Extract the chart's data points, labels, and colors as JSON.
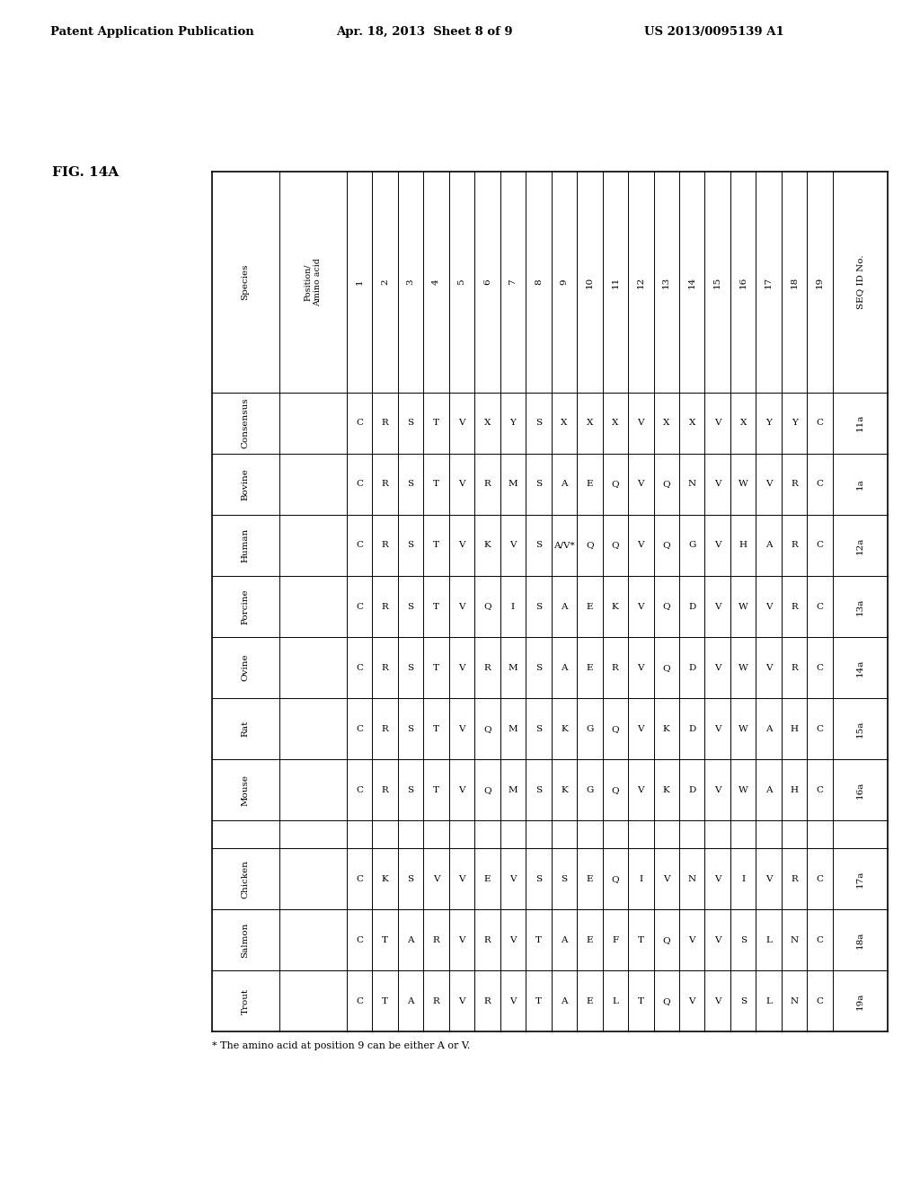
{
  "fig_label": "FIG. 14A",
  "footnote": "* The amino acid at position 9 can be either A or V.",
  "positions": [
    "1",
    "2",
    "3",
    "4",
    "5",
    "6",
    "7",
    "8",
    "9",
    "10",
    "11",
    "12",
    "13",
    "14",
    "15",
    "16",
    "17",
    "18",
    "19"
  ],
  "rows": [
    [
      "Consensus",
      "C",
      "R",
      "S",
      "T",
      "V",
      "X",
      "Y",
      "S",
      "X",
      "X",
      "X",
      "V",
      "X",
      "X",
      "V",
      "X",
      "Y",
      "Y",
      "C",
      "11a"
    ],
    [
      "Bovine",
      "C",
      "R",
      "S",
      "T",
      "V",
      "R",
      "M",
      "S",
      "A",
      "E",
      "Q",
      "V",
      "Q",
      "N",
      "V",
      "W",
      "V",
      "R",
      "C",
      "1a"
    ],
    [
      "Human",
      "C",
      "R",
      "S",
      "T",
      "V",
      "K",
      "V",
      "S",
      "A/V*",
      "Q",
      "Q",
      "V",
      "Q",
      "G",
      "V",
      "H",
      "A",
      "R",
      "C",
      "12a"
    ],
    [
      "Porcine",
      "C",
      "R",
      "S",
      "T",
      "V",
      "Q",
      "I",
      "S",
      "A",
      "E",
      "K",
      "V",
      "Q",
      "D",
      "V",
      "W",
      "V",
      "R",
      "C",
      "13a"
    ],
    [
      "Ovine",
      "C",
      "R",
      "S",
      "T",
      "V",
      "R",
      "M",
      "S",
      "A",
      "E",
      "R",
      "V",
      "Q",
      "D",
      "V",
      "W",
      "V",
      "R",
      "C",
      "14a"
    ],
    [
      "Rat",
      "C",
      "R",
      "S",
      "T",
      "V",
      "Q",
      "M",
      "S",
      "K",
      "G",
      "Q",
      "V",
      "K",
      "D",
      "V",
      "W",
      "A",
      "H",
      "C",
      "15a"
    ],
    [
      "Mouse",
      "C",
      "R",
      "S",
      "T",
      "V",
      "Q",
      "M",
      "S",
      "K",
      "G",
      "Q",
      "V",
      "K",
      "D",
      "V",
      "W",
      "A",
      "H",
      "C",
      "16a"
    ],
    [
      "",
      "",
      "",
      "",
      "",
      "",
      "",
      "",
      "",
      "",
      "",
      "",
      "",
      "",
      "",
      "",
      "",
      "",
      "",
      "",
      ""
    ],
    [
      "Chicken",
      "C",
      "K",
      "S",
      "V",
      "V",
      "E",
      "V",
      "S",
      "S",
      "E",
      "Q",
      "I",
      "V",
      "N",
      "V",
      "I",
      "V",
      "R",
      "C",
      "17a"
    ],
    [
      "Salmon",
      "C",
      "T",
      "A",
      "R",
      "V",
      "R",
      "V",
      "T",
      "A",
      "E",
      "F",
      "T",
      "Q",
      "V",
      "V",
      "S",
      "L",
      "N",
      "C",
      "18a"
    ],
    [
      "Trout",
      "C",
      "T",
      "A",
      "R",
      "V",
      "R",
      "V",
      "T",
      "A",
      "E",
      "L",
      "T",
      "Q",
      "V",
      "V",
      "S",
      "L",
      "N",
      "C",
      "19a"
    ]
  ]
}
